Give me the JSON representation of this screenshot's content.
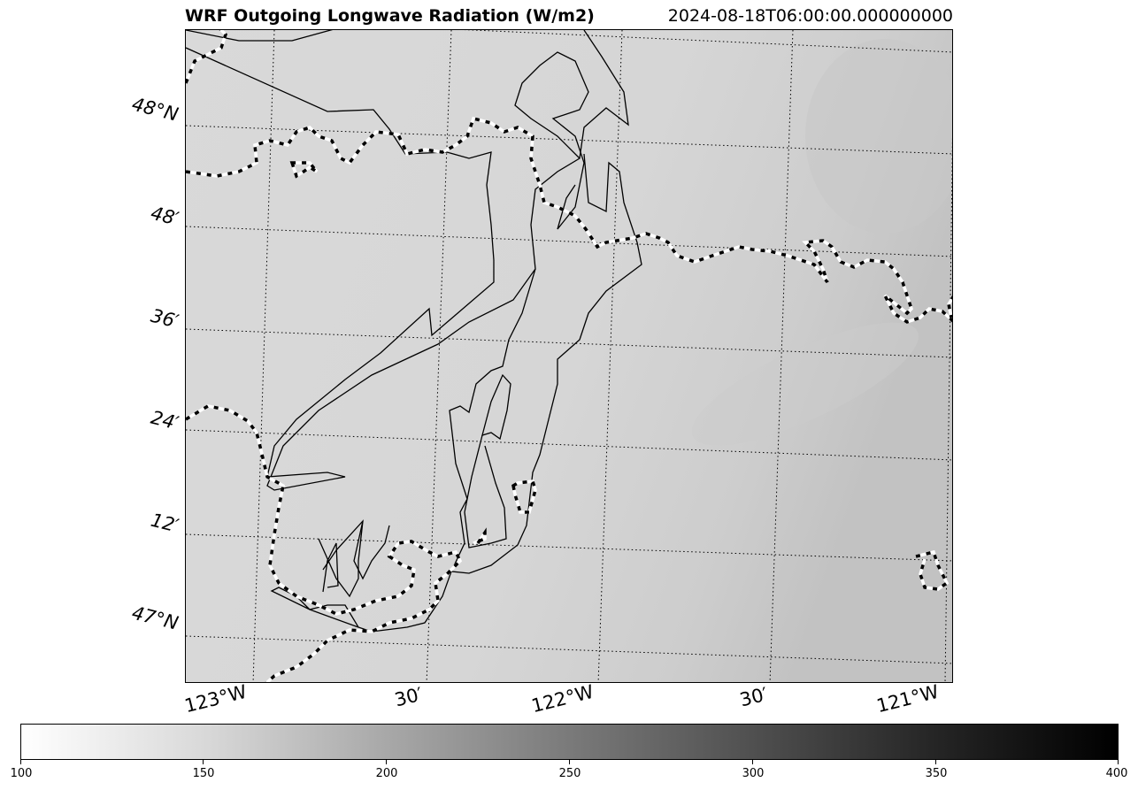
{
  "header": {
    "title": "WRF Outgoing Longwave Radiation (W/m2)",
    "timestamp": "2024-08-18T06:00:00.000000000"
  },
  "map": {
    "lat_labels": [
      "48°N",
      "48′",
      "36′",
      "24′",
      "12′",
      "47°N"
    ],
    "lon_labels": [
      "123°W",
      "30′",
      "122°W",
      "30′",
      "121°W"
    ],
    "background_color": "#d6d6d6",
    "coastline_color": "#000000",
    "border_style": "dashed black-white"
  },
  "colorbar": {
    "min": 100,
    "max": 400,
    "ticks": [
      "100",
      "150",
      "200",
      "250",
      "300",
      "350",
      "400"
    ],
    "colormap": "Greys (white to black)"
  }
}
